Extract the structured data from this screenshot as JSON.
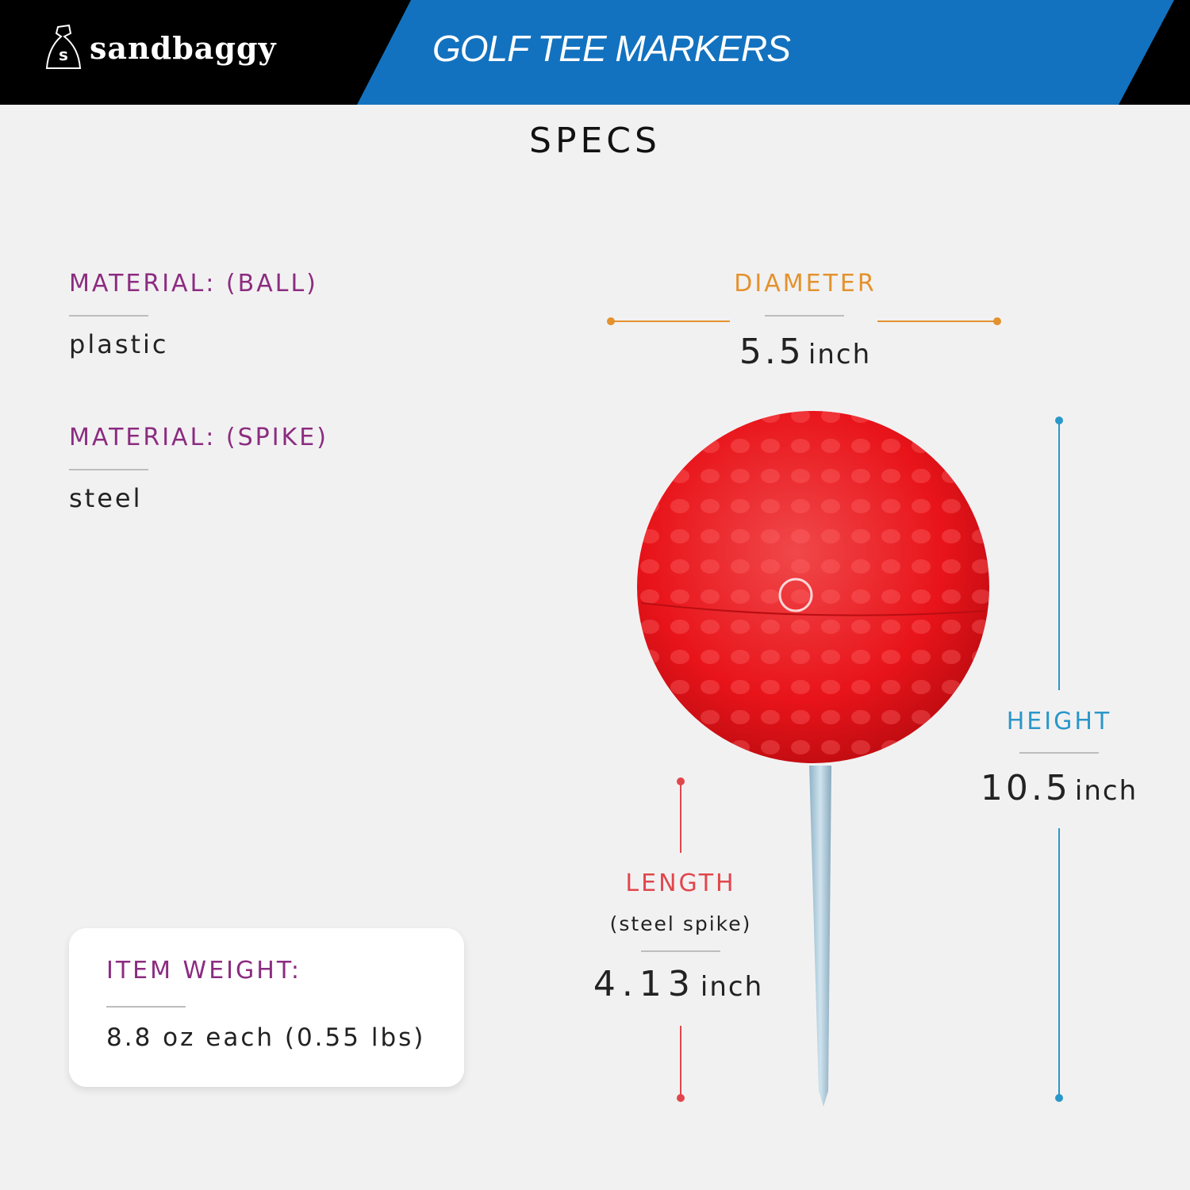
{
  "header": {
    "brand": "sandbaggy",
    "title": "GOLF TEE MARKERS",
    "brand_icon": "money-bag-icon"
  },
  "section_title": "SPECS",
  "specs": [
    {
      "label": "MATERIAL: (BALL)",
      "value": "plastic"
    },
    {
      "label": "MATERIAL: (SPIKE)",
      "value": "steel"
    }
  ],
  "weight": {
    "label": "ITEM WEIGHT:",
    "value": "8.8 oz each (0.55 lbs)"
  },
  "dimensions": {
    "diameter": {
      "label": "DIAMETER",
      "value": "5.5",
      "unit": "inch",
      "color": "#e3922d"
    },
    "height": {
      "label": "HEIGHT",
      "value": "10.5",
      "unit": "inch",
      "color": "#2a97c9"
    },
    "length": {
      "label": "LENGTH",
      "sublabel": "(steel spike)",
      "value": "4.13",
      "unit": "inch",
      "color": "#e0474c"
    }
  },
  "colors": {
    "header_blue": "#1272bf",
    "label_purple": "#8b2c80",
    "ball_red": "#e8141a"
  }
}
